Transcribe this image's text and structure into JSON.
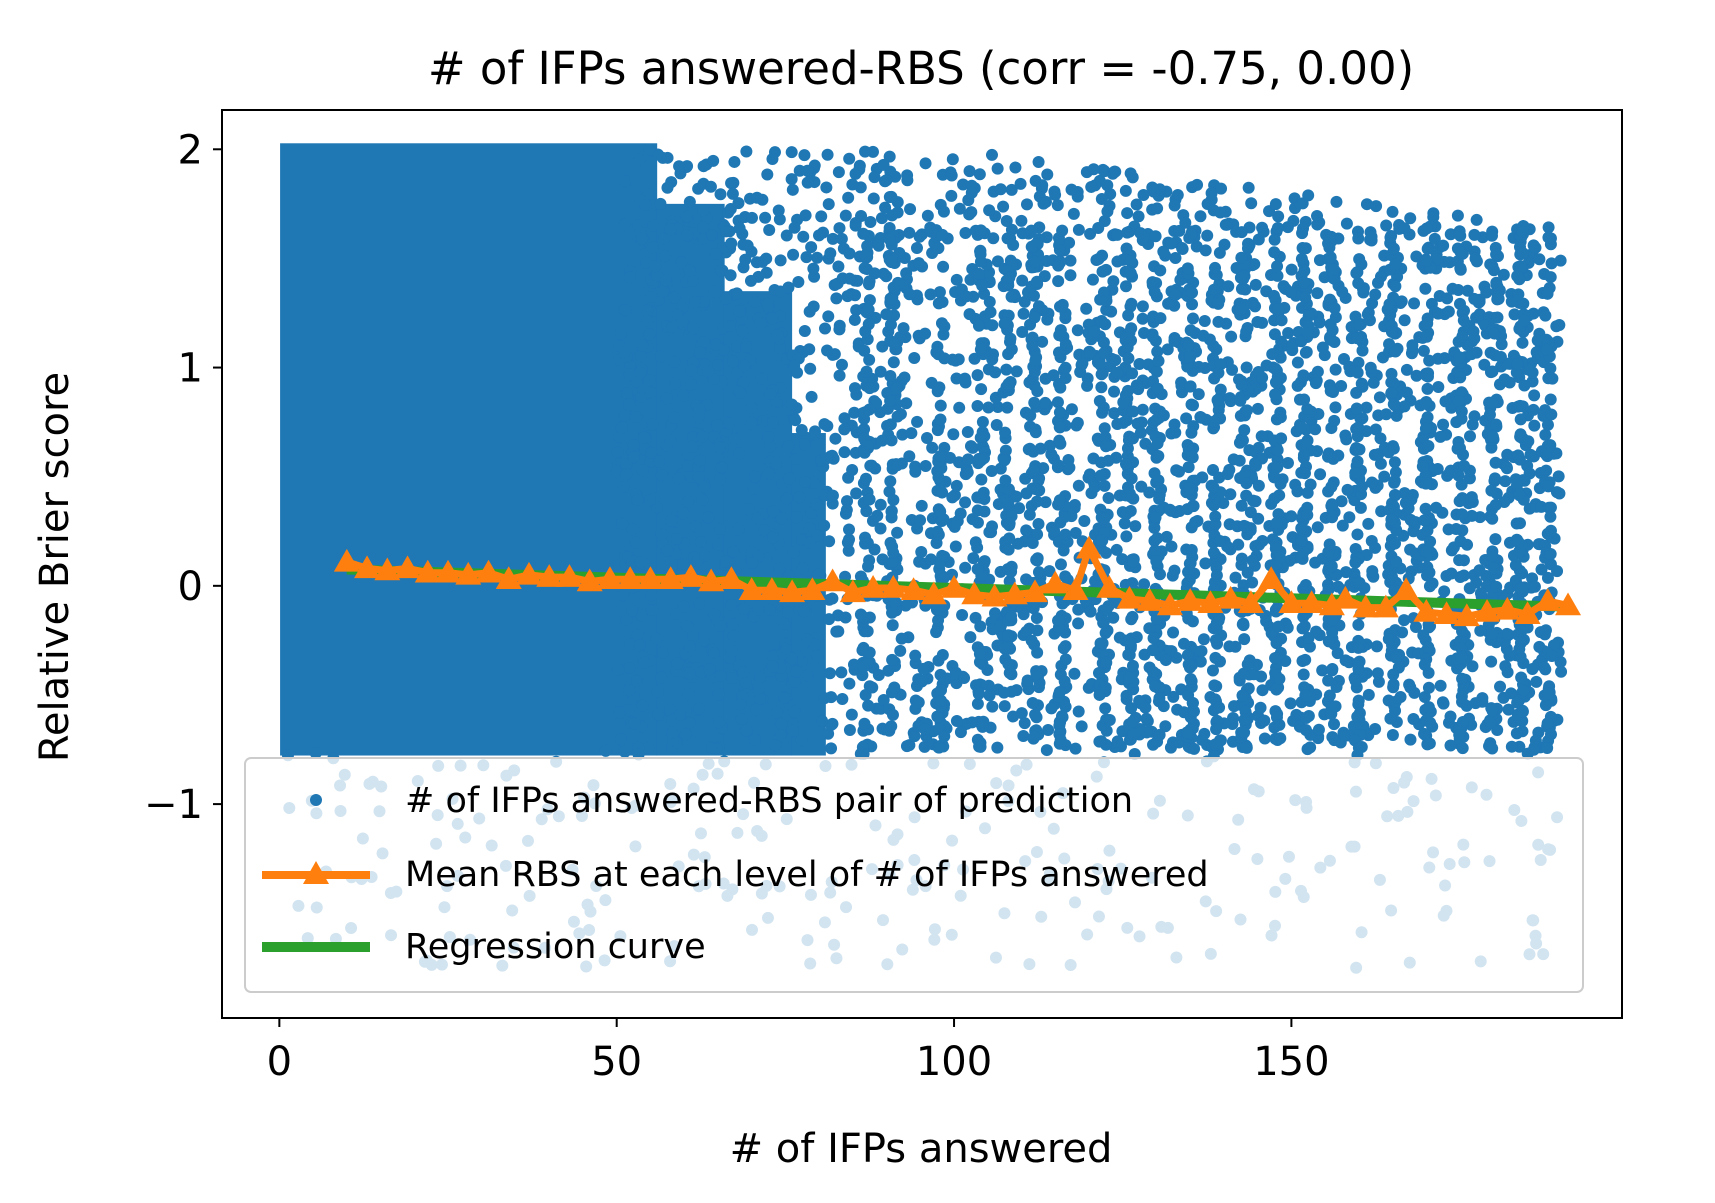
{
  "chart_data": {
    "type": "scatter",
    "title": "# of IFPs answered-RBS (corr = -0.75, 0.00)",
    "xlabel": "# of IFPs answered",
    "ylabel": "Relative Brier score",
    "xlim": [
      -8.5,
      199
    ],
    "ylim": [
      -1.98,
      2.18
    ],
    "x_ticks": [
      0,
      50,
      100,
      150
    ],
    "x_tick_labels": [
      "0",
      "50",
      "100",
      "150"
    ],
    "y_ticks": [
      -1,
      0,
      1,
      2
    ],
    "y_tick_labels": [
      "−1",
      "0",
      "1",
      "2"
    ],
    "grid": false,
    "legend_position": "lower-left",
    "colors": {
      "scatter": "#1f77b4",
      "mean": "#ff7f0e",
      "regression": "#2ca02c"
    },
    "series": [
      {
        "name": "# of IFPs answered-RBS pair of prediction",
        "kind": "scatter",
        "x_range": [
          1,
          190
        ],
        "y_range": [
          -1.75,
          2.0
        ]
      },
      {
        "name": "Mean RBS at each level of # of IFPs answered",
        "kind": "line-triangle",
        "x": [
          10,
          13,
          16,
          19,
          22,
          25,
          28,
          31,
          34,
          37,
          40,
          43,
          46,
          49,
          52,
          55,
          58,
          61,
          64,
          67,
          70,
          73,
          76,
          79,
          82,
          85,
          88,
          91,
          94,
          97,
          100,
          103,
          106,
          109,
          112,
          115,
          118,
          120,
          123,
          126,
          129,
          132,
          135,
          138,
          141,
          144,
          147,
          150,
          153,
          156,
          158,
          161,
          164,
          167,
          170,
          173,
          176,
          179,
          182,
          185,
          188,
          191
        ],
        "y": [
          0.11,
          0.08,
          0.07,
          0.08,
          0.06,
          0.06,
          0.05,
          0.06,
          0.03,
          0.05,
          0.04,
          0.04,
          0.02,
          0.03,
          0.03,
          0.03,
          0.03,
          0.04,
          0.02,
          0.03,
          -0.02,
          -0.02,
          -0.03,
          -0.02,
          0.02,
          -0.03,
          -0.01,
          -0.01,
          -0.02,
          -0.04,
          -0.01,
          -0.04,
          -0.05,
          -0.04,
          -0.03,
          0.01,
          -0.02,
          0.17,
          -0.01,
          -0.06,
          -0.07,
          -0.09,
          -0.07,
          -0.08,
          -0.06,
          -0.08,
          0.03,
          -0.08,
          -0.08,
          -0.09,
          -0.06,
          -0.1,
          -0.1,
          -0.02,
          -0.12,
          -0.13,
          -0.14,
          -0.12,
          -0.11,
          -0.13,
          -0.07,
          -0.09
        ]
      },
      {
        "name": "Regression curve",
        "kind": "line",
        "x": [
          10,
          190
        ],
        "y": [
          0.075,
          -0.095
        ]
      }
    ]
  }
}
